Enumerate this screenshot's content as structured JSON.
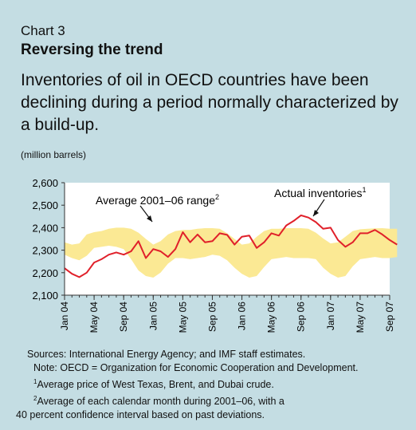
{
  "header": {
    "label": "Chart 3",
    "title": "Reversing the trend",
    "subtitle": "Inventories of oil in OECD countries have been declining during a period normally characterized by a build-up."
  },
  "chart_data": {
    "type": "line",
    "units": "(million barrels)",
    "ylim": [
      2100,
      2600
    ],
    "yticks": [
      2100,
      2200,
      2300,
      2400,
      2500,
      2600
    ],
    "ytick_labels": [
      "2,100",
      "2,200",
      "2,300",
      "2,400",
      "2,500",
      "2,600"
    ],
    "xrange": [
      0,
      44
    ],
    "xtick_positions": [
      0,
      4,
      8,
      12,
      16,
      20,
      24,
      28,
      32,
      36,
      40,
      44
    ],
    "xtick_labels": [
      "Jan 04",
      "May 04",
      "Sep 04",
      "Jan 05",
      "May 05",
      "Sep 05",
      "Jan 06",
      "May 06",
      "Sep 06",
      "Jan 07",
      "May 07",
      "Sep 07"
    ],
    "x_start": "Jan 2004",
    "x_end": "Sep 2007",
    "grid": false,
    "series": [
      {
        "name": "Actual inventories",
        "superscript": "1",
        "color": "#e0202a",
        "values": [
          2220,
          2195,
          2180,
          2200,
          2245,
          2260,
          2280,
          2290,
          2280,
          2295,
          2340,
          2265,
          2305,
          2295,
          2270,
          2305,
          2380,
          2335,
          2370,
          2335,
          2340,
          2375,
          2368,
          2325,
          2360,
          2365,
          2310,
          2335,
          2375,
          2365,
          2410,
          2430,
          2455,
          2445,
          2425,
          2395,
          2400,
          2345,
          2315,
          2335,
          2375,
          2375,
          2390,
          2370,
          2345,
          2325
        ]
      },
      {
        "name": "Average 2001–06 range",
        "superscript": "2",
        "type": "band",
        "color": "#fbe994",
        "low": [
          2280,
          2265,
          2255,
          2275,
          2310,
          2315,
          2320,
          2315,
          2305,
          2260,
          2210,
          2185,
          2178,
          2200,
          2240,
          2265,
          2265,
          2260,
          2265,
          2270,
          2280,
          2275,
          2255,
          2222,
          2195,
          2178,
          2185,
          2225,
          2260,
          2265,
          2270,
          2265,
          2265,
          2265,
          2260,
          2222,
          2195,
          2178,
          2185,
          2228,
          2260,
          2265,
          2270,
          2265,
          2265,
          2270
        ],
        "high": [
          2335,
          2325,
          2330,
          2370,
          2380,
          2385,
          2395,
          2400,
          2400,
          2395,
          2378,
          2350,
          2325,
          2340,
          2370,
          2385,
          2390,
          2390,
          2395,
          2398,
          2398,
          2395,
          2375,
          2350,
          2325,
          2330,
          2360,
          2385,
          2395,
          2395,
          2398,
          2398,
          2398,
          2395,
          2378,
          2352,
          2330,
          2335,
          2360,
          2385,
          2393,
          2395,
          2397,
          2398,
          2395,
          2395
        ]
      }
    ],
    "annotations": [
      {
        "text": "Average 2001–06 range",
        "superscript": "2"
      },
      {
        "text": "Actual inventories",
        "superscript": "1"
      }
    ]
  },
  "sources": {
    "line1": "Sources:   International Energy Agency; and IMF staff estimates.",
    "line2": "Note: OECD = Organization for Economic Cooperation and Development.",
    "note1_sup": "1",
    "note1": "Average price of West Texas, Brent, and Dubai crude.",
    "note2_sup": "2",
    "note2a": "Average of each calendar month during 2001–06, with a",
    "note2b": "40 percent confidence interval based on past deviations."
  }
}
